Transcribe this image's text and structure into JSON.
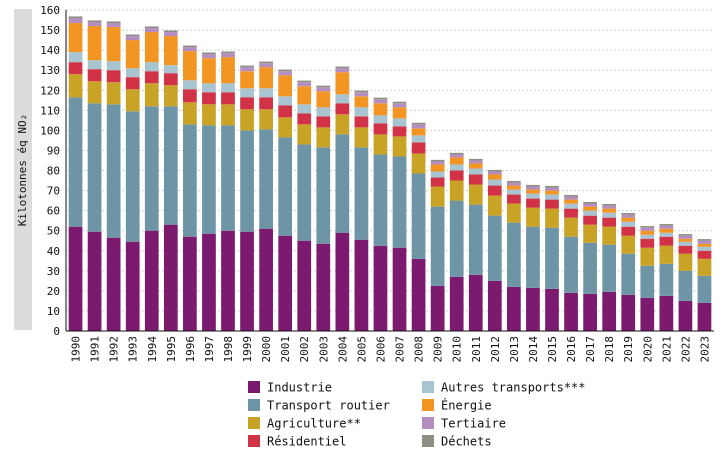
{
  "chart_data": {
    "type": "bar",
    "stacked": true,
    "ylabel": "Kilotonnes éq NO₂",
    "ylim": [
      0,
      160
    ],
    "yticks": [
      0,
      10,
      20,
      30,
      40,
      50,
      60,
      70,
      80,
      90,
      100,
      110,
      120,
      130,
      140,
      150,
      160
    ],
    "grid": true,
    "legend_position": "bottom",
    "categories": [
      "1990",
      "1991",
      "1992",
      "1993",
      "1994",
      "1995",
      "1996",
      "1997",
      "1998",
      "1999",
      "2000",
      "2001",
      "2002",
      "2003",
      "2004",
      "2005",
      "2006",
      "2007",
      "2008",
      "2009",
      "2010",
      "2011",
      "2012",
      "2013",
      "2014",
      "2015",
      "2016",
      "2017",
      "2018",
      "2019",
      "2020",
      "2021",
      "2022",
      "2023"
    ],
    "series": [
      {
        "name": "Industrie",
        "color": "#7b1a6e",
        "values": [
          52,
          49.5,
          46.5,
          44.5,
          50,
          53,
          47,
          48.5,
          50,
          49.5,
          51,
          47.5,
          45,
          43.5,
          49,
          45.5,
          42.5,
          41.5,
          36,
          22.5,
          27,
          28,
          25,
          22,
          21.5,
          21,
          19,
          18.5,
          19.5,
          18,
          16.5,
          17.5,
          15,
          14
        ]
      },
      {
        "name": "Transport routier",
        "color": "#6e95a5",
        "values": [
          64.5,
          64,
          66.5,
          65,
          62,
          59,
          56,
          54,
          52.5,
          50.5,
          49.5,
          49,
          48,
          48,
          49,
          46,
          45.5,
          45.5,
          42.5,
          39.5,
          38,
          35,
          32.5,
          32,
          30.5,
          30.5,
          28,
          25.5,
          23.5,
          20.5,
          16,
          16,
          15,
          13.5
        ]
      },
      {
        "name": "Agriculture**",
        "color": "#c9a326",
        "values": [
          11.5,
          11,
          11,
          11,
          11.5,
          10.5,
          11,
          10.5,
          10.5,
          10.5,
          10,
          10,
          10,
          10,
          10,
          10,
          10,
          10,
          10,
          10,
          10,
          10,
          10,
          9.5,
          9.5,
          9.5,
          9.5,
          9,
          9,
          9,
          9,
          9,
          8.5,
          8.5
        ]
      },
      {
        "name": "Résidentiel",
        "color": "#d23245",
        "values": [
          6,
          6,
          6,
          6,
          6,
          6,
          6.5,
          6,
          6,
          6,
          6,
          6,
          5.5,
          5.5,
          5.5,
          5.5,
          5.5,
          5,
          5.5,
          4.5,
          5,
          5,
          5,
          4.5,
          4.5,
          4.5,
          4.5,
          4.5,
          4.5,
          4.5,
          4.5,
          4.5,
          4,
          4
        ]
      },
      {
        "name": "Autres transports***",
        "color": "#a9c4d1",
        "values": [
          5,
          4.5,
          4.5,
          4.5,
          4.5,
          4,
          4.5,
          4.5,
          4.5,
          4.5,
          4.5,
          4.5,
          4.5,
          4.5,
          4.5,
          4.5,
          4,
          4,
          3.5,
          3,
          3,
          3,
          3,
          2.5,
          2.5,
          2.5,
          2.5,
          2.5,
          2.5,
          2.5,
          2,
          2,
          2,
          2
        ]
      },
      {
        "name": "Énergie",
        "color": "#f39523",
        "values": [
          14.5,
          17,
          17,
          14,
          15,
          14.5,
          14.5,
          12.5,
          13,
          8.5,
          10.5,
          10.5,
          9,
          8,
          11,
          5.5,
          6,
          5.5,
          3.5,
          3.5,
          3.5,
          2.5,
          2.5,
          2,
          2,
          2,
          2,
          2,
          2,
          2,
          2,
          2,
          1.5,
          1.5
        ]
      },
      {
        "name": "Tertiaire",
        "color": "#b48ec0",
        "values": [
          2.5,
          2,
          2,
          2,
          2,
          2,
          2,
          2,
          2,
          2,
          2,
          2,
          2,
          2,
          2,
          2,
          2,
          2,
          2,
          1.5,
          1.5,
          1.5,
          1.5,
          1.5,
          1.5,
          1.5,
          1.5,
          1.5,
          1.5,
          1.5,
          1.5,
          1.5,
          1.5,
          1.5
        ]
      },
      {
        "name": "Déchets",
        "color": "#8f8e82",
        "values": [
          0.8,
          0.8,
          0.8,
          0.8,
          0.8,
          0.8,
          0.8,
          0.8,
          0.8,
          0.8,
          0.8,
          0.8,
          0.8,
          0.8,
          0.8,
          0.8,
          0.8,
          0.8,
          0.8,
          0.8,
          0.8,
          0.8,
          0.8,
          0.8,
          0.8,
          0.8,
          0.8,
          0.8,
          0.8,
          0.8,
          0.8,
          0.8,
          0.8,
          0.8
        ]
      }
    ]
  }
}
